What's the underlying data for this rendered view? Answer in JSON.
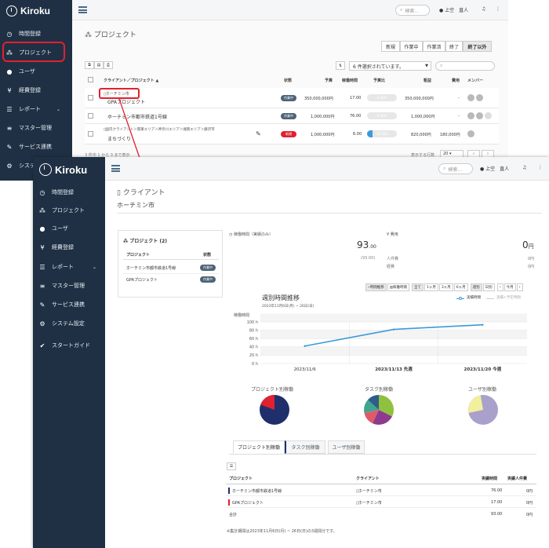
{
  "top": {
    "brand": "Kiroku",
    "sidebar": [
      "時間登録",
      "プロジェクト",
      "ユーザ",
      "経費登録",
      "レポート",
      "マスター管理",
      "サービス連携",
      "システム設定"
    ],
    "search_placeholder": "検索...",
    "user": "上空　直人",
    "page_title": "プロジェクト",
    "filter_tabs": [
      "新規",
      "作業中",
      "作業済",
      "終了",
      "終了以外"
    ],
    "select_text": "6 件選択されています。",
    "columns": [
      "クライアント／プロジェクト ▲",
      "状態",
      "予算",
      "稼働時間",
      "予算比",
      "粗益",
      "費用",
      "メンバー"
    ],
    "rows": [
      {
        "client": "ホーチミン市",
        "project": "GPAプロジェクト",
        "status": "作業中",
        "budget": "350,000,000円",
        "hours": "17.00",
        "ratio": "0.00%",
        "profit": "350,000,000円",
        "cost": "-"
      },
      {
        "client": "",
        "project": "ホーチミン市都市鉄道1号線",
        "status": "作業中",
        "budget": "1,000,000円",
        "hours": "76.00",
        "ratio": "0.00%",
        "profit": "1,000,000円",
        "cost": "-"
      },
      {
        "client": "国内クライアント＞関東エリア＞神奈川エリア＞湘南エリア＞藤沢市",
        "project": "まちづくり",
        "status": "新規",
        "budget": "1,000,000円",
        "hours": "6.00",
        "ratio": "18.00%",
        "profit": "820,000円",
        "cost": "180,000円"
      }
    ],
    "pager_left": "3 件中 1 から 3 まで表示",
    "pager_right": "表示する行数",
    "pager_count": "20"
  },
  "front": {
    "brand": "Kiroku",
    "sidebar": [
      "時間登録",
      "プロジェクト",
      "ユーザ",
      "経費登録",
      "レポート",
      "マスター管理",
      "サービス連携",
      "システム設定",
      "スタートガイド"
    ],
    "search_placeholder": "検索...",
    "user": "上空　直人",
    "section_title": "クライアント",
    "client_name": "ホーチミン市",
    "proj_card_title": "プロジェクト (2)",
    "proj_card_cols": [
      "プロジェクト",
      "状態"
    ],
    "proj_card_rows": [
      {
        "name": "ホーチミン市都市鉄道1号線",
        "status": "作業中"
      },
      {
        "name": "GPAプロジェクト",
        "status": "作業中"
      }
    ],
    "hours_title": "稼働時間（実績のみ）",
    "hours_value": "93",
    "hours_decimal": ".00",
    "hours_sub": "(93.00)",
    "cost_title": "費用",
    "cost_value": "0",
    "cost_unit": "円",
    "cost_rows": [
      {
        "label": "人件費",
        "value": "0円"
      },
      {
        "label": "経費",
        "value": "0円"
      }
    ],
    "view_btns": [
      "時間推移",
      "稼働時間",
      "全て",
      "1ヶ月",
      "3ヶ月",
      "6ヶ月",
      "週別",
      "日別",
      "今月"
    ],
    "chart_title": "週別時間推移",
    "chart_subtitle": "2023年11月6日(月) ~ 26日(日)",
    "legend": [
      "実績時間",
      "実績+予定時間"
    ],
    "pie_titles": [
      "プロジェクト別稼働",
      "タスク別稼働",
      "ユーザ別稼働"
    ],
    "tabs": [
      "プロジェクト別稼働",
      "タスク別稼働",
      "ユーザ別稼働"
    ],
    "table_cols": [
      "プロジェクト",
      "クライアント",
      "実績時間",
      "実績人件費"
    ],
    "table_rows": [
      {
        "project": "ホーチミン市都市鉄道1号線",
        "client": "ホーチミン市",
        "hours": "76.00",
        "cost": "0円"
      },
      {
        "project": "GPAプロジェクト",
        "client": "ホーチミン市",
        "hours": "17.00",
        "cost": "0円"
      }
    ],
    "total_label": "合計",
    "total_hours": "93.00",
    "total_cost": "0円",
    "footnote": "※集計期間は2023年11月6日(月) ~ 26日(日)の3週間分です。"
  },
  "chart_data": {
    "type": "line",
    "title": "週別時間推移",
    "subtitle": "2023年11月6日(月) ~ 26日(日)",
    "ylabel": "稼働時間",
    "categories": [
      "2023/11/6",
      "2023/11/13 先週",
      "2023/11/20 今週"
    ],
    "ylim": [
      0,
      100
    ],
    "yticks": [
      "0 h",
      "20 h",
      "40 h",
      "60 h",
      "80 h",
      "100 h"
    ],
    "series": [
      {
        "name": "実績時間",
        "values": [
          42,
          82,
          93
        ]
      }
    ],
    "legend_position": "top-right"
  },
  "colors": {
    "sidebar": "#1f3044",
    "accent": "#3a9ad9",
    "highlight": "#e0212f",
    "navy": "#1f2f6b",
    "pie_red": "#e0212f",
    "pie_green": "#8fc13e",
    "pie_purple": "#8e3a8e",
    "pie_lav": "#a9a0cc",
    "pie_yellow": "#f2ef9d"
  }
}
